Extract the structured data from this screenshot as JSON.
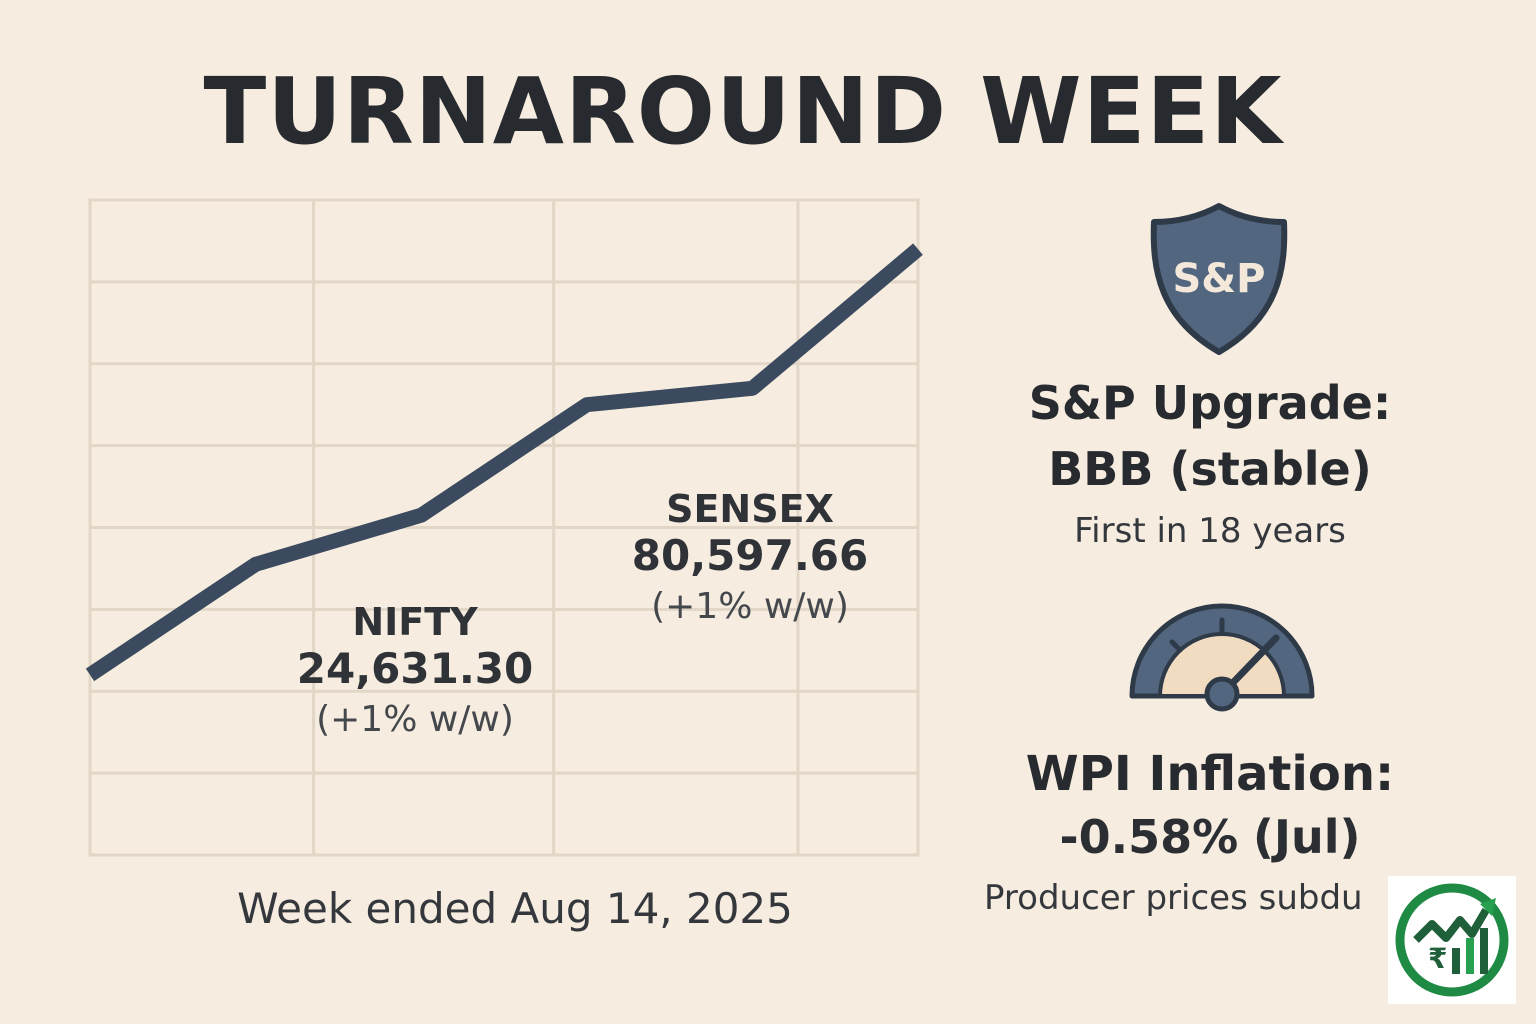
{
  "title": "TURNAROUND WEEK",
  "chart_data": {
    "type": "line",
    "x": [
      0,
      1,
      2,
      3,
      4,
      5
    ],
    "series": [
      {
        "values": [
          22,
          35.5,
          41.5,
          55,
          57,
          74
        ]
      }
    ],
    "ylim": [
      0,
      80
    ],
    "grid": true,
    "annotations": [
      {
        "name": "NIFTY",
        "value": "24,631.30",
        "change": "(+1% w/w)"
      },
      {
        "name": "SENSEX",
        "value": "80,597.66",
        "change": "(+1% w/w)"
      }
    ],
    "caption": "Week ended Aug 14, 2025"
  },
  "colors": {
    "background": "#f6ece0",
    "line": "#3b4a5e",
    "grid": "#e2d6c6",
    "accent": "#52667f",
    "gauge_face": "#f1dcc2"
  },
  "sp": {
    "badge": "S&P",
    "heading_line1": "S&P Upgrade:",
    "heading_line2": "BBB (stable)",
    "note": "First in 18 years",
    "icon": "shield-icon"
  },
  "wpi": {
    "heading_line1": "WPI Inflation:",
    "value": "-0.58%",
    "period": "(Jul)",
    "note": "Producer prices subdu",
    "icon": "gauge-icon"
  },
  "logo": {
    "icon": "rupee-growth-logo"
  }
}
